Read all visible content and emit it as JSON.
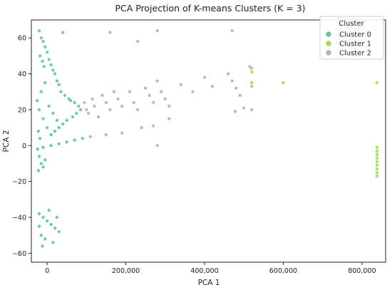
{
  "chart_data": {
    "type": "scatter",
    "title": "PCA Projection of K-means Clusters (K = 3)",
    "xlabel": "PCA 1",
    "ylabel": "PCA 2",
    "xlim": [
      -40000,
      860000
    ],
    "ylim": [
      -65,
      70
    ],
    "xticks": [
      0,
      200000,
      400000,
      600000,
      800000
    ],
    "xtick_labels": [
      "0",
      "200,000",
      "400,000",
      "600,000",
      "800,000"
    ],
    "yticks": [
      -60,
      -40,
      -20,
      0,
      20,
      40,
      60
    ],
    "ytick_labels": [
      "−60",
      "−40",
      "−20",
      "0",
      "20",
      "40",
      "60"
    ],
    "grid": false,
    "legend": {
      "title": "Cluster",
      "placement": "top-right"
    },
    "series": [
      {
        "name": "Cluster 0",
        "color": "#66c2a5",
        "points": [
          [
            -20000,
            64
          ],
          [
            -15000,
            60
          ],
          [
            -10000,
            58
          ],
          [
            -5000,
            55
          ],
          [
            0,
            52
          ],
          [
            5000,
            48
          ],
          [
            10000,
            45
          ],
          [
            15000,
            42
          ],
          [
            -18000,
            50
          ],
          [
            -12000,
            47
          ],
          [
            -8000,
            44
          ],
          [
            20000,
            40
          ],
          [
            25000,
            36
          ],
          [
            30000,
            34
          ],
          [
            40000,
            63
          ],
          [
            35000,
            30
          ],
          [
            45000,
            28
          ],
          [
            55000,
            26
          ],
          [
            60000,
            25
          ],
          [
            70000,
            24
          ],
          [
            80000,
            22
          ],
          [
            85000,
            20
          ],
          [
            75000,
            18
          ],
          [
            65000,
            16
          ],
          [
            50000,
            14
          ],
          [
            40000,
            12
          ],
          [
            30000,
            10
          ],
          [
            20000,
            8
          ],
          [
            10000,
            6
          ],
          [
            0,
            10
          ],
          [
            -10000,
            15
          ],
          [
            -20000,
            20
          ],
          [
            -25000,
            25
          ],
          [
            -15000,
            30
          ],
          [
            -5000,
            35
          ],
          [
            5000,
            22
          ],
          [
            15000,
            18
          ],
          [
            25000,
            14
          ],
          [
            -22000,
            8
          ],
          [
            -18000,
            4
          ],
          [
            -24000,
            -2
          ],
          [
            -10000,
            -1
          ],
          [
            10000,
            0
          ],
          [
            30000,
            1
          ],
          [
            50000,
            2
          ],
          [
            70000,
            3
          ],
          [
            90000,
            4
          ],
          [
            -20000,
            -6
          ],
          [
            -15000,
            -10
          ],
          [
            -10000,
            -12
          ],
          [
            -5000,
            -8
          ],
          [
            -22000,
            -14
          ],
          [
            -20000,
            -38
          ],
          [
            -10000,
            -40
          ],
          [
            0,
            -42
          ],
          [
            10000,
            -44
          ],
          [
            20000,
            -46
          ],
          [
            30000,
            -48
          ],
          [
            -15000,
            -50
          ],
          [
            -5000,
            -52
          ],
          [
            15000,
            -54
          ],
          [
            25000,
            -40
          ],
          [
            -20000,
            -45
          ],
          [
            5000,
            -36
          ],
          [
            -12000,
            -56
          ]
        ]
      },
      {
        "name": "Cluster 1",
        "color": "#a6d854",
        "points": [
          [
            520000,
            43
          ],
          [
            520000,
            41
          ],
          [
            520000,
            35
          ],
          [
            520000,
            33
          ],
          [
            600000,
            35
          ],
          [
            838000,
            35
          ],
          [
            838000,
            -1
          ],
          [
            838000,
            -3
          ],
          [
            838000,
            -5
          ],
          [
            838000,
            -7
          ],
          [
            838000,
            -9
          ],
          [
            838000,
            -11
          ],
          [
            838000,
            -13
          ],
          [
            838000,
            -15
          ],
          [
            838000,
            -17
          ]
        ]
      },
      {
        "name": "Cluster 2",
        "color": "#b3b3b3",
        "points": [
          [
            95000,
            24
          ],
          [
            100000,
            20
          ],
          [
            105000,
            18
          ],
          [
            115000,
            26
          ],
          [
            120000,
            22
          ],
          [
            130000,
            16
          ],
          [
            140000,
            28
          ],
          [
            150000,
            24
          ],
          [
            160000,
            20
          ],
          [
            170000,
            30
          ],
          [
            180000,
            26
          ],
          [
            190000,
            22
          ],
          [
            210000,
            30
          ],
          [
            220000,
            24
          ],
          [
            230000,
            20
          ],
          [
            250000,
            32
          ],
          [
            260000,
            28
          ],
          [
            270000,
            24
          ],
          [
            280000,
            36
          ],
          [
            290000,
            30
          ],
          [
            300000,
            26
          ],
          [
            310000,
            22
          ],
          [
            340000,
            34
          ],
          [
            370000,
            30
          ],
          [
            400000,
            38
          ],
          [
            420000,
            33
          ],
          [
            460000,
            40
          ],
          [
            470000,
            36
          ],
          [
            480000,
            32
          ],
          [
            490000,
            28
          ],
          [
            500000,
            21
          ],
          [
            478000,
            19
          ],
          [
            470000,
            64
          ],
          [
            280000,
            64
          ],
          [
            230000,
            58
          ],
          [
            160000,
            63
          ],
          [
            110000,
            5
          ],
          [
            150000,
            6
          ],
          [
            190000,
            7
          ],
          [
            240000,
            10
          ],
          [
            270000,
            11
          ],
          [
            280000,
            0
          ],
          [
            310000,
            15
          ],
          [
            520000,
            20
          ],
          [
            515000,
            44
          ]
        ]
      }
    ]
  }
}
